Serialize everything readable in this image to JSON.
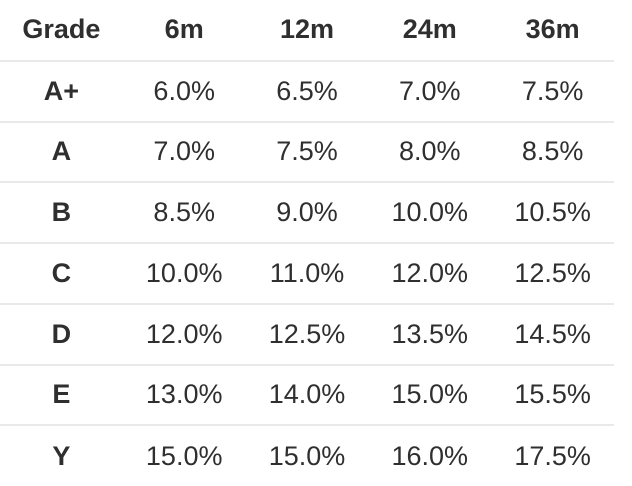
{
  "colors": {
    "background": "#ffffff",
    "text": "#2f2f2f",
    "divider": "#e9e9e9"
  },
  "chart_data": {
    "type": "table",
    "columns": [
      "Grade",
      "6m",
      "12m",
      "24m",
      "36m"
    ],
    "rows": [
      [
        "A+",
        "6.0%",
        "6.5%",
        "7.0%",
        "7.5%"
      ],
      [
        "A",
        "7.0%",
        "7.5%",
        "8.0%",
        "8.5%"
      ],
      [
        "B",
        "8.5%",
        "9.0%",
        "10.0%",
        "10.5%"
      ],
      [
        "C",
        "10.0%",
        "11.0%",
        "12.0%",
        "12.5%"
      ],
      [
        "D",
        "12.0%",
        "12.5%",
        "13.5%",
        "14.5%"
      ],
      [
        "E",
        "13.0%",
        "14.0%",
        "15.0%",
        "15.5%"
      ],
      [
        "Y",
        "15.0%",
        "15.0%",
        "16.0%",
        "17.5%"
      ]
    ]
  }
}
